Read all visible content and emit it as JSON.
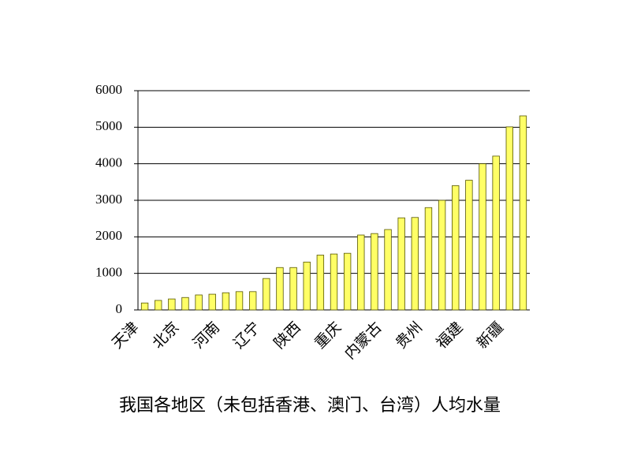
{
  "chart_data": {
    "type": "bar",
    "title": "我国各地区（未包括香港、澳门、台湾）人均水量",
    "categories": [
      "天津",
      null,
      null,
      "北京",
      null,
      null,
      "河南",
      null,
      null,
      "辽宁",
      null,
      null,
      "陕西",
      null,
      null,
      "重庆",
      null,
      null,
      "内蒙古",
      null,
      null,
      "贵州",
      null,
      null,
      "福建",
      null,
      null,
      "新疆",
      null
    ],
    "values": [
      190,
      260,
      300,
      340,
      410,
      430,
      470,
      500,
      500,
      860,
      1160,
      1160,
      1310,
      1500,
      1530,
      1550,
      2050,
      2090,
      2200,
      2520,
      2530,
      2800,
      3000,
      3400,
      3550,
      4000,
      4210,
      5010,
      5310
    ],
    "color": "#ffff66",
    "ylim": [
      0,
      6000
    ],
    "yticks": [
      0,
      1000,
      2000,
      3000,
      4000,
      5000,
      6000
    ],
    "grid": true
  }
}
